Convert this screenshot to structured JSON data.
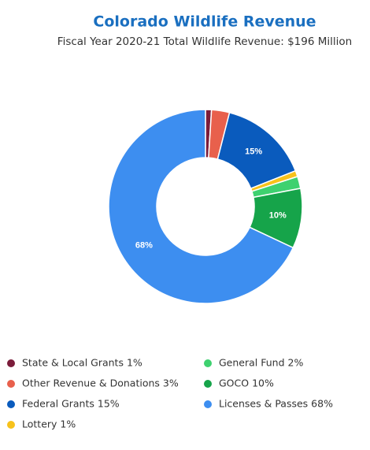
{
  "chart_data": {
    "type": "donut",
    "title": "Colorado Wildlife Revenue",
    "subtitle": "Fiscal Year 2020-21 Total Wildlife Revenue: $196 Million",
    "categories": [
      "State & Local Grants 1%",
      "Other Revenue & Donations 3%",
      "Federal Grants 15%",
      "Lottery 1%",
      "General Fund 2%",
      "GOCO 10%",
      "Licenses & Passes 68%"
    ],
    "values": [
      1,
      3,
      15,
      1,
      2,
      10,
      68
    ],
    "value_labels": [
      null,
      null,
      "15%",
      null,
      null,
      "10%",
      "68%"
    ],
    "colors": [
      "#7b1c3a",
      "#e8604c",
      "#0a5bbd",
      "#f7c21b",
      "#3ed16f",
      "#16a44a",
      "#3d8ef0"
    ]
  }
}
